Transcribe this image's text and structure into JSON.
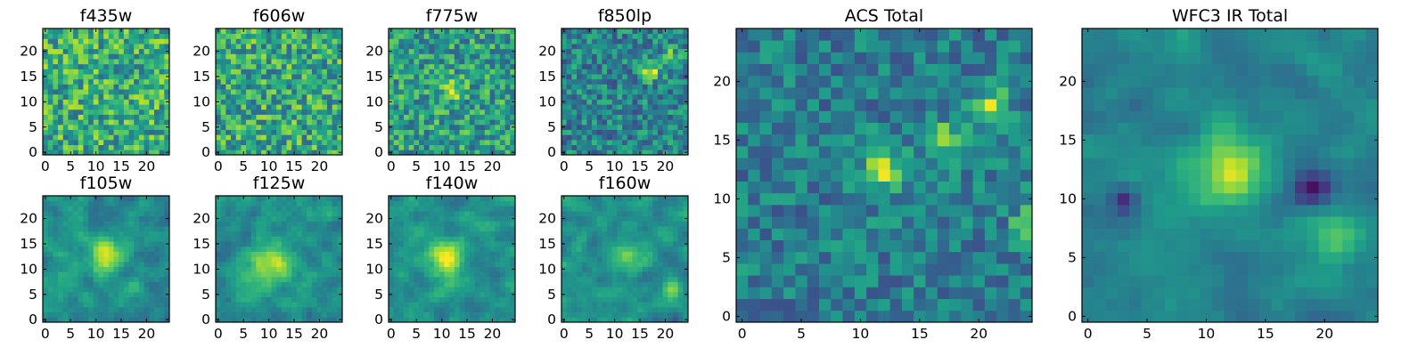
{
  "chart_data": [
    {
      "type": "heatmap",
      "title": "f435w",
      "grid_size": 25,
      "xlim": [
        -0.5,
        24.5
      ],
      "ylim": [
        -0.5,
        24.5
      ],
      "xticks": [
        0,
        5,
        10,
        15,
        20
      ],
      "yticks": [
        0,
        5,
        10,
        15,
        20
      ],
      "colormap": "viridis",
      "pattern": {
        "kind": "noise",
        "base": 0.62,
        "spread": 0.55,
        "seed": 11
      }
    },
    {
      "type": "heatmap",
      "title": "f606w",
      "grid_size": 25,
      "xlim": [
        -0.5,
        24.5
      ],
      "ylim": [
        -0.5,
        24.5
      ],
      "xticks": [
        0,
        5,
        10,
        15,
        20
      ],
      "yticks": [
        0,
        5,
        10,
        15,
        20
      ],
      "colormap": "viridis",
      "pattern": {
        "kind": "noise",
        "base": 0.6,
        "spread": 0.55,
        "seed": 23
      }
    },
    {
      "type": "heatmap",
      "title": "f775w",
      "grid_size": 25,
      "xlim": [
        -0.5,
        24.5
      ],
      "ylim": [
        -0.5,
        24.5
      ],
      "xticks": [
        0,
        5,
        10,
        15,
        20
      ],
      "yticks": [
        0,
        5,
        10,
        15,
        20
      ],
      "colormap": "viridis",
      "pattern": {
        "kind": "blobs",
        "base": 0.55,
        "spread": 0.5,
        "seed": 37,
        "blobs": [
          {
            "x": 12,
            "y": 12.5,
            "amp": 0.35,
            "sigma": 1.5
          }
        ]
      }
    },
    {
      "type": "heatmap",
      "title": "f850lp",
      "grid_size": 25,
      "xlim": [
        -0.5,
        24.5
      ],
      "ylim": [
        -0.5,
        24.5
      ],
      "xticks": [
        0,
        5,
        10,
        15,
        20
      ],
      "yticks": [
        0,
        5,
        10,
        15,
        20
      ],
      "colormap": "viridis",
      "pattern": {
        "kind": "blobs",
        "base": 0.45,
        "spread": 0.45,
        "seed": 41,
        "blobs": [
          {
            "x": 17,
            "y": 16,
            "amp": 0.5,
            "sigma": 1.2
          },
          {
            "x": 21,
            "y": 19,
            "amp": 0.4,
            "sigma": 1.0
          }
        ]
      }
    },
    {
      "type": "heatmap",
      "title": "f105w",
      "grid_size": 25,
      "xlim": [
        -0.5,
        24.5
      ],
      "ylim": [
        -0.5,
        24.5
      ],
      "xticks": [
        0,
        5,
        10,
        15,
        20
      ],
      "yticks": [
        0,
        5,
        10,
        15,
        20
      ],
      "colormap": "viridis",
      "pattern": {
        "kind": "blobs",
        "base": 0.5,
        "spread": 0.35,
        "seed": 53,
        "smooth": true,
        "blobs": [
          {
            "x": 12,
            "y": 12.5,
            "amp": 0.45,
            "sigma": 2.2
          }
        ]
      }
    },
    {
      "type": "heatmap",
      "title": "f125w",
      "grid_size": 25,
      "xlim": [
        -0.5,
        24.5
      ],
      "ylim": [
        -0.5,
        24.5
      ],
      "xticks": [
        0,
        5,
        10,
        15,
        20
      ],
      "yticks": [
        0,
        5,
        10,
        15,
        20
      ],
      "colormap": "viridis",
      "pattern": {
        "kind": "blobs",
        "base": 0.5,
        "spread": 0.35,
        "seed": 67,
        "smooth": true,
        "blobs": [
          {
            "x": 10,
            "y": 11,
            "amp": 0.4,
            "sigma": 3.0
          }
        ]
      }
    },
    {
      "type": "heatmap",
      "title": "f140w",
      "grid_size": 25,
      "xlim": [
        -0.5,
        24.5
      ],
      "ylim": [
        -0.5,
        24.5
      ],
      "xticks": [
        0,
        5,
        10,
        15,
        20
      ],
      "yticks": [
        0,
        5,
        10,
        15,
        20
      ],
      "colormap": "viridis",
      "pattern": {
        "kind": "blobs",
        "base": 0.5,
        "spread": 0.35,
        "seed": 71,
        "smooth": true,
        "blobs": [
          {
            "x": 11,
            "y": 12,
            "amp": 0.45,
            "sigma": 2.5
          }
        ]
      }
    },
    {
      "type": "heatmap",
      "title": "f160w",
      "grid_size": 25,
      "xlim": [
        -0.5,
        24.5
      ],
      "ylim": [
        -0.5,
        24.5
      ],
      "xticks": [
        0,
        5,
        10,
        15,
        20
      ],
      "yticks": [
        0,
        5,
        10,
        15,
        20
      ],
      "colormap": "viridis",
      "pattern": {
        "kind": "blobs",
        "base": 0.5,
        "spread": 0.35,
        "seed": 83,
        "smooth": true,
        "blobs": [
          {
            "x": 13,
            "y": 12,
            "amp": 0.4,
            "sigma": 2.0
          },
          {
            "x": 21,
            "y": 6,
            "amp": 0.35,
            "sigma": 1.5
          }
        ]
      }
    },
    {
      "type": "heatmap",
      "title": "ACS Total",
      "grid_size": 25,
      "xlim": [
        -0.5,
        24.5
      ],
      "ylim": [
        -0.5,
        24.5
      ],
      "xticks": [
        0,
        5,
        10,
        15,
        20
      ],
      "yticks": [
        0,
        5,
        10,
        15,
        20
      ],
      "colormap": "viridis",
      "pattern": {
        "kind": "blobs",
        "base": 0.42,
        "spread": 0.35,
        "seed": 97,
        "blobs": [
          {
            "x": 12,
            "y": 12.5,
            "amp": 0.45,
            "sigma": 1.3
          },
          {
            "x": 17.5,
            "y": 15,
            "amp": 0.45,
            "sigma": 1.0
          },
          {
            "x": 21,
            "y": 18,
            "amp": 0.5,
            "sigma": 0.9
          },
          {
            "x": 24,
            "y": 8,
            "amp": 0.4,
            "sigma": 0.8
          }
        ]
      }
    },
    {
      "type": "heatmap",
      "title": "WFC3 IR Total",
      "grid_size": 25,
      "xlim": [
        -0.5,
        24.5
      ],
      "ylim": [
        -0.5,
        24.5
      ],
      "xticks": [
        0,
        5,
        10,
        15,
        20
      ],
      "yticks": [
        0,
        5,
        10,
        15,
        20
      ],
      "colormap": "viridis",
      "pattern": {
        "kind": "blobs",
        "base": 0.45,
        "spread": 0.25,
        "seed": 101,
        "smooth": true,
        "blobs": [
          {
            "x": 12,
            "y": 12.5,
            "amp": 0.5,
            "sigma": 2.2
          },
          {
            "x": 21,
            "y": 7,
            "amp": 0.35,
            "sigma": 1.6
          },
          {
            "x": 19,
            "y": 11,
            "amp": -0.4,
            "sigma": 1.2
          },
          {
            "x": 3,
            "y": 10,
            "amp": -0.35,
            "sigma": 0.8
          }
        ]
      }
    }
  ]
}
